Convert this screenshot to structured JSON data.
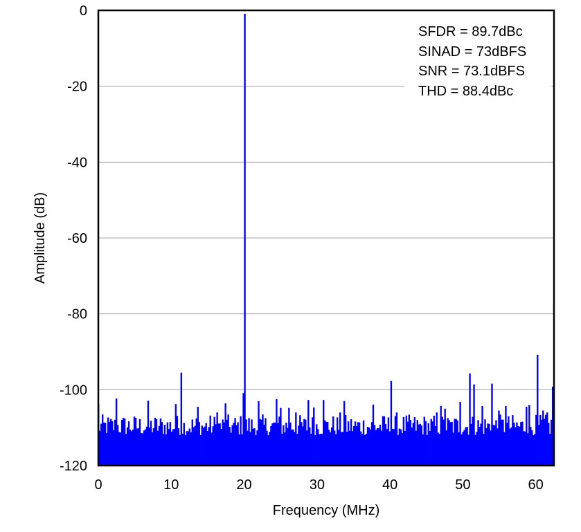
{
  "chart_data": {
    "type": "bar",
    "title": "",
    "xlabel": "Frequency (MHz)",
    "ylabel": "Amplitude (dB)",
    "xlim": [
      0,
      62.5
    ],
    "ylim": [
      -120,
      0
    ],
    "xticks": [
      "0",
      "10",
      "20",
      "30",
      "40",
      "50",
      "60"
    ],
    "yticks": [
      "0",
      "-20",
      "-40",
      "-60",
      "-80",
      "-100",
      "-120"
    ],
    "grid": "horizontal",
    "series_color": "#0000ff",
    "grid_color": "#a0a0a0",
    "annotations": [
      "SFDR = 89.7dBc",
      "SINAD = 73dBFS",
      "SNR = 73.1dBFS",
      "THD = 88.4dBc"
    ],
    "noise_floor_db": [
      -112,
      -106.5
    ],
    "peaks": [
      {
        "x": 0.0,
        "y": -103.8
      },
      {
        "x": 2.5,
        "y": -102.3
      },
      {
        "x": 6.8,
        "y": -102.9
      },
      {
        "x": 10.7,
        "y": -103.8
      },
      {
        "x": 11.3,
        "y": -95.5
      },
      {
        "x": 13.7,
        "y": -104.5
      },
      {
        "x": 16.2,
        "y": -106.0
      },
      {
        "x": 17.5,
        "y": -103.6
      },
      {
        "x": 19.8,
        "y": -100.9
      },
      {
        "x": 20.1,
        "y": -0.9
      },
      {
        "x": 22.0,
        "y": -103.0
      },
      {
        "x": 24.5,
        "y": -102.5
      },
      {
        "x": 25.0,
        "y": -104.8
      },
      {
        "x": 26.2,
        "y": -104.8
      },
      {
        "x": 27.1,
        "y": -106.0
      },
      {
        "x": 28.8,
        "y": -102.7
      },
      {
        "x": 29.5,
        "y": -104.7
      },
      {
        "x": 30.8,
        "y": -102.7
      },
      {
        "x": 33.2,
        "y": -106.0
      },
      {
        "x": 33.8,
        "y": -103.0
      },
      {
        "x": 37.6,
        "y": -103.9
      },
      {
        "x": 40.2,
        "y": -97.7
      },
      {
        "x": 40.9,
        "y": -106.0
      },
      {
        "x": 46.4,
        "y": -106.0
      },
      {
        "x": 47.0,
        "y": -104.3
      },
      {
        "x": 47.5,
        "y": -105.0
      },
      {
        "x": 49.6,
        "y": -103.2
      },
      {
        "x": 50.9,
        "y": -95.7
      },
      {
        "x": 51.5,
        "y": -98.6
      },
      {
        "x": 52.6,
        "y": -104.3
      },
      {
        "x": 53.9,
        "y": -98.4
      },
      {
        "x": 54.9,
        "y": -105.5
      },
      {
        "x": 55.8,
        "y": -104.3
      },
      {
        "x": 58.8,
        "y": -104.5
      },
      {
        "x": 59.1,
        "y": -104.0
      },
      {
        "x": 60.3,
        "y": -90.8
      },
      {
        "x": 61.0,
        "y": -105.5
      },
      {
        "x": 61.5,
        "y": -106.0
      },
      {
        "x": 62.3,
        "y": -99.2
      }
    ]
  }
}
